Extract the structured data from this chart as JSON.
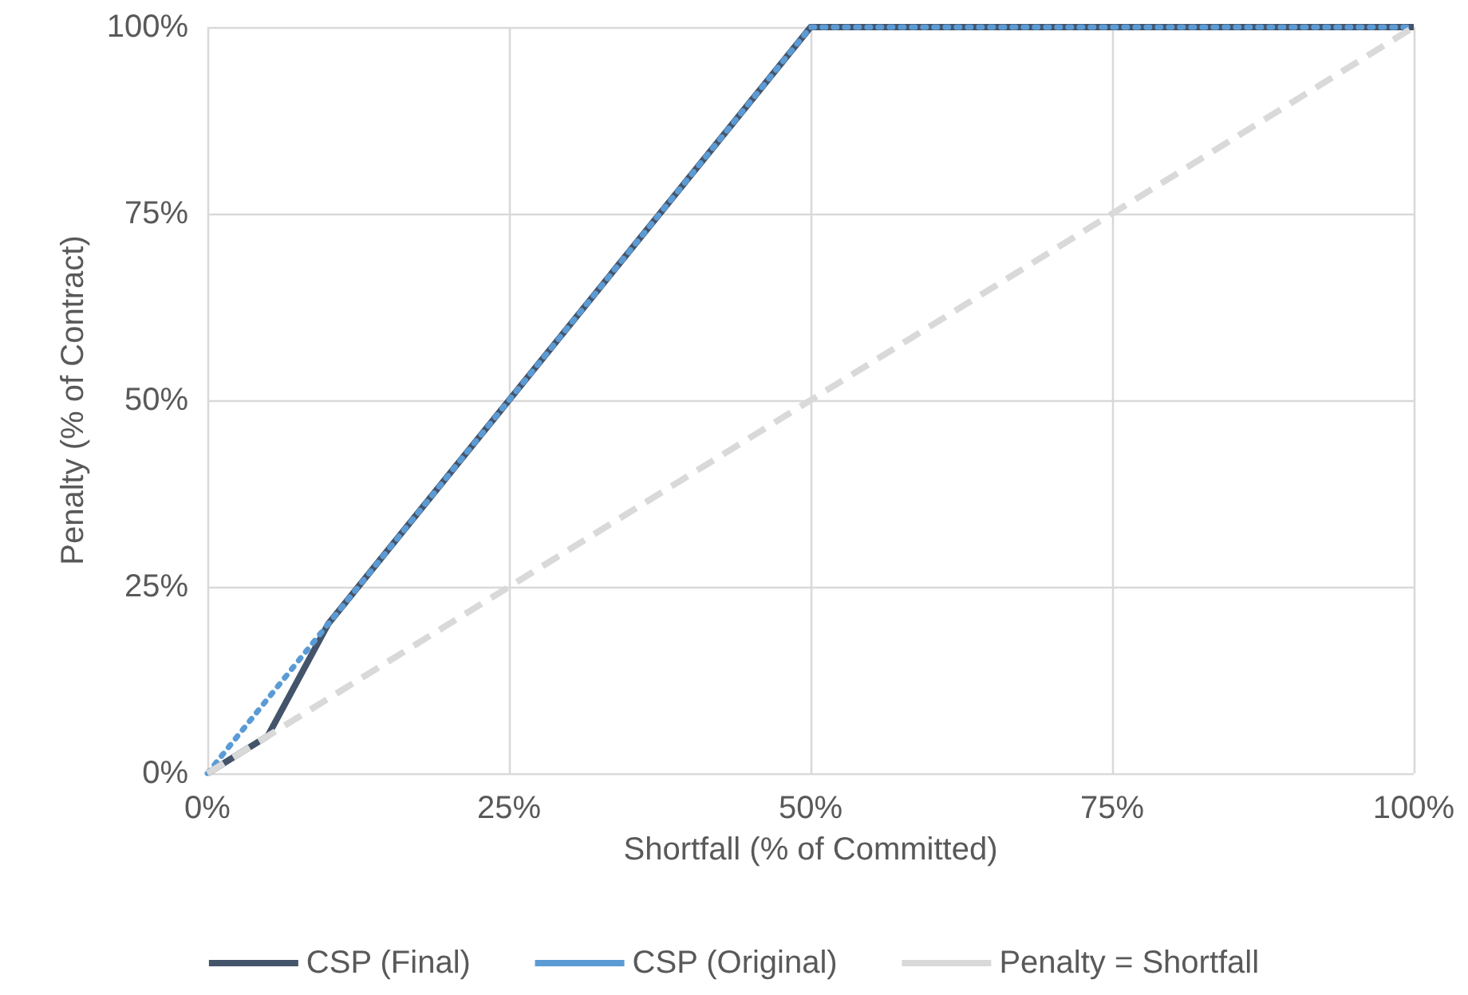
{
  "chart_data": {
    "type": "line",
    "xlabel": "Shortfall (% of Committed)",
    "ylabel": "Penalty (% of Contract)",
    "xlim": [
      0,
      100
    ],
    "xticks": [
      {
        "value": 0,
        "label": "0%"
      },
      {
        "value": 25,
        "label": "25%"
      },
      {
        "value": 50,
        "label": "50%"
      },
      {
        "value": 75,
        "label": "75%"
      },
      {
        "value": 100,
        "label": "100%"
      }
    ],
    "ylim": [
      0,
      100
    ],
    "yticks": [
      {
        "value": 0,
        "label": "0%"
      },
      {
        "value": 25,
        "label": "25%"
      },
      {
        "value": 50,
        "label": "50%"
      },
      {
        "value": 75,
        "label": "75%"
      },
      {
        "value": 100,
        "label": "100%"
      }
    ],
    "grid": true,
    "legend": "bottom",
    "marker": "none",
    "series": [
      {
        "name": "CSP (Final)",
        "color": "#44546a",
        "line_style": "solid",
        "x": [
          0,
          5,
          10,
          50,
          100
        ],
        "values": [
          0,
          5,
          20,
          100,
          100
        ]
      },
      {
        "name": "CSP (Original)",
        "color": "#5b9bd5",
        "line_style": "dotted",
        "x": [
          0,
          10,
          50,
          100
        ],
        "values": [
          0,
          20,
          100,
          100
        ]
      },
      {
        "name": "Penalty = Shortfall",
        "color": "#d9d9d9",
        "line_style": "dashed",
        "x": [
          0,
          100
        ],
        "values": [
          0,
          100
        ]
      }
    ]
  }
}
